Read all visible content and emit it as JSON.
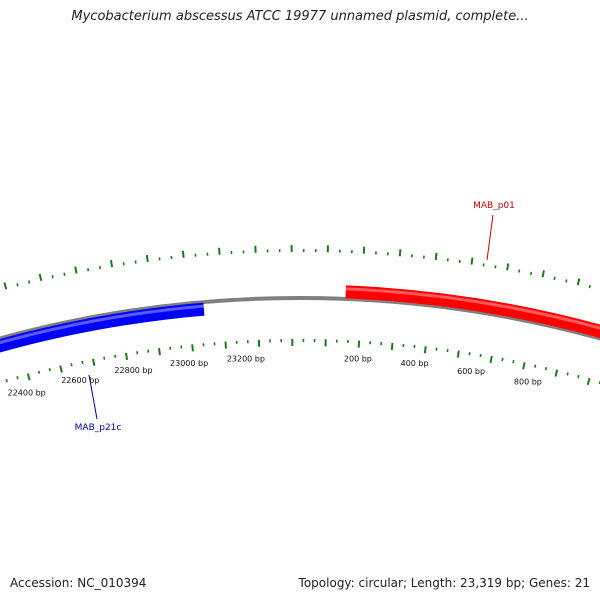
{
  "title": "Mycobacterium abscessus ATCC 19977 unnamed plasmid, complete...",
  "accession": "Accession: NC_010394",
  "summary": "Topology: circular; Length: 23,319 bp; Genes: 21",
  "colors": {
    "backbone": "#808080",
    "forward_gene": "#ff0000",
    "reverse_gene": "#0000ff",
    "ticks": "#1a7a1a",
    "forward_label": "#cc0000",
    "reverse_label": "#0000aa"
  },
  "position_labels": [
    "22400 bp",
    "22600 bp",
    "22800 bp",
    "23000 bp",
    "23200 bp",
    "200 bp",
    "400 bp",
    "600 bp",
    "800 bp"
  ],
  "genes": [
    {
      "name": "MAB_p01",
      "strand": "forward"
    },
    {
      "name": "MAB_p21c",
      "strand": "reverse"
    }
  ]
}
